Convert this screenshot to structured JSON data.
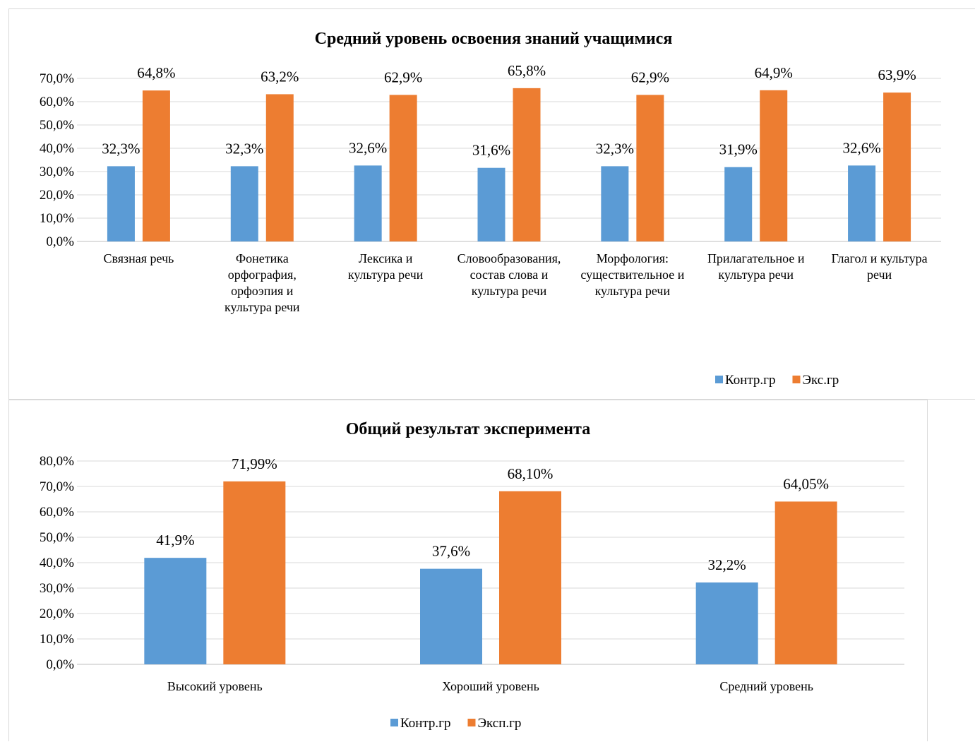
{
  "chart_data": [
    {
      "type": "bar",
      "title": "Средний уровень освоения знаний учащимися",
      "categories": [
        [
          "Связная речь"
        ],
        [
          "Фонетика",
          "орфография,",
          "орфоэпия и",
          "культура речи"
        ],
        [
          "Лексика и",
          "культура речи"
        ],
        [
          "Словообразования,",
          "состав слова и",
          "культура речи"
        ],
        [
          "Морфология:",
          "существительное и",
          "культура речи"
        ],
        [
          "Прилагательное и",
          "культура речи"
        ],
        [
          "Глагол и культура",
          "речи"
        ]
      ],
      "series": [
        {
          "name": "Контр.гр",
          "color": "#5B9BD5",
          "values": [
            32.3,
            32.3,
            32.6,
            31.6,
            32.3,
            31.9,
            32.6
          ],
          "labels": [
            "32,3%",
            "32,3%",
            "32,6%",
            "31,6%",
            "32,3%",
            "31,9%",
            "32,6%"
          ]
        },
        {
          "name": "Экс.гр",
          "color": "#ED7D31",
          "values": [
            64.8,
            63.2,
            62.9,
            65.8,
            62.9,
            64.9,
            63.9
          ],
          "labels": [
            "64,8%",
            "63,2%",
            "62,9%",
            "65,8%",
            "62,9%",
            "64,9%",
            "63,9%"
          ]
        }
      ],
      "ylim": [
        0,
        70
      ],
      "yticks": [
        "0,0%",
        "10,0%",
        "20,0%",
        "30,0%",
        "40,0%",
        "50,0%",
        "60,0%",
        "70,0%"
      ],
      "grid": true,
      "legend": "bottom-right"
    },
    {
      "type": "bar",
      "title": "Общий результат эксперимента",
      "categories": [
        [
          "Высокий уровень"
        ],
        [
          "Хороший уровень"
        ],
        [
          "Средний уровень"
        ]
      ],
      "series": [
        {
          "name": "Контр.гр",
          "color": "#5B9BD5",
          "values": [
            41.9,
            37.6,
            32.2
          ],
          "labels": [
            "41,9%",
            "37,6%",
            "32,2%"
          ]
        },
        {
          "name": "Эксп.гр",
          "color": "#ED7D31",
          "values": [
            71.99,
            68.1,
            64.05
          ],
          "labels": [
            "71,99%",
            "68,10%",
            "64,05%"
          ]
        }
      ],
      "ylim": [
        0,
        80
      ],
      "yticks": [
        "0,0%",
        "10,0%",
        "20,0%",
        "30,0%",
        "40,0%",
        "50,0%",
        "60,0%",
        "70,0%",
        "80,0%"
      ],
      "grid": true,
      "legend": "bottom"
    }
  ]
}
